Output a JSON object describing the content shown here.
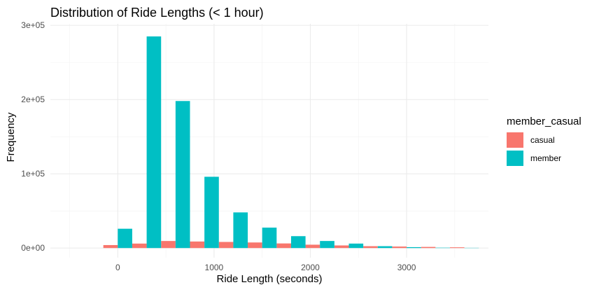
{
  "chart_data": {
    "type": "bar",
    "title": "Distribution of Ride Lengths (< 1 hour)",
    "xlabel": "Ride Length (seconds)",
    "ylabel": "Frequency",
    "xlim": [
      -700,
      3850
    ],
    "ylim": [
      -13000,
      302000
    ],
    "x_ticks": [
      0,
      1000,
      2000,
      3000
    ],
    "x_tick_labels": [
      "0",
      "1000",
      "2000",
      "3000"
    ],
    "y_ticks": [
      0,
      100000,
      200000,
      300000
    ],
    "y_tick_labels": [
      "0e+00",
      "1e+05",
      "2e+05",
      "3e+05"
    ],
    "bin_width": 300,
    "bin_centers": [
      0,
      300,
      600,
      900,
      1200,
      1500,
      1800,
      2100,
      2400,
      2700,
      3000,
      3300,
      3600
    ],
    "series": [
      {
        "name": "casual",
        "color": "#F8766D",
        "values": [
          4000,
          6000,
          9500,
          8800,
          8200,
          7500,
          6200,
          4500,
          3500,
          2500,
          2000,
          1500,
          1000
        ]
      },
      {
        "name": "member",
        "color": "#00BFC4",
        "values": [
          26000,
          285000,
          198000,
          96000,
          48000,
          27500,
          16000,
          9500,
          6000,
          2500,
          1200,
          500,
          300
        ]
      }
    ],
    "legend": {
      "title": "member_casual",
      "position": "right"
    },
    "grid": true
  }
}
